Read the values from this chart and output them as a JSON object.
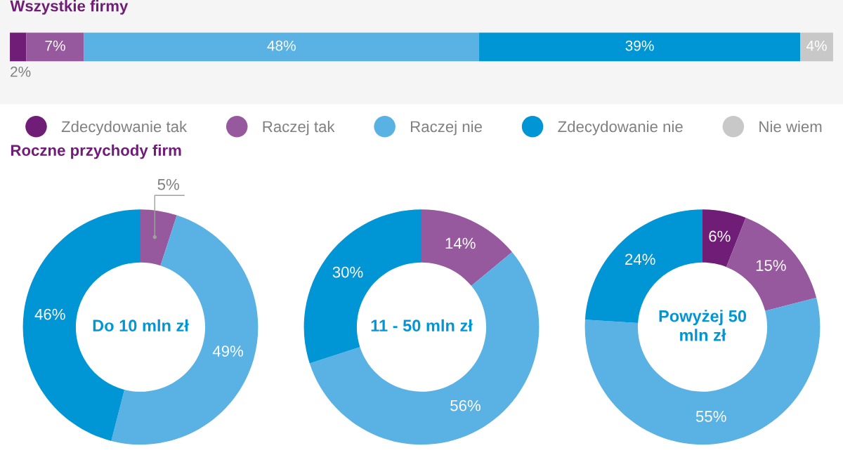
{
  "chart_data": [
    {
      "type": "bar",
      "title": "Wszystkie firmy",
      "categories": [
        null
      ],
      "stacked": true,
      "orientation": "horizontal",
      "legend": "bottom",
      "series": [
        {
          "name": "Zdecydowanie tak",
          "color": "#6f1d77",
          "values": [
            2
          ],
          "value_labels": [
            "2%"
          ]
        },
        {
          "name": "Raczej tak",
          "color": "#97599d",
          "values": [
            7
          ],
          "value_labels": [
            "7%"
          ]
        },
        {
          "name": "Raczej nie",
          "color": "#5ab1e3",
          "values": [
            48
          ],
          "value_labels": [
            "48%"
          ]
        },
        {
          "name": "Zdecydowanie nie",
          "color": "#0096d6",
          "values": [
            39
          ],
          "value_labels": [
            "39%"
          ]
        },
        {
          "name": "Nie wiem",
          "color": "#c8c8c8",
          "values": [
            4
          ],
          "value_labels": [
            "4%"
          ]
        }
      ]
    },
    {
      "type": "donut",
      "subtitle": "Roczne przychody firm",
      "title": "Do 10 mln zł",
      "categories": [
        null,
        null,
        null
      ],
      "values": [
        5,
        49,
        46
      ],
      "value_labels": [
        "5%",
        "49%",
        "46%"
      ],
      "colors": [
        "#97599d",
        "#5ab1e3",
        "#0096d6"
      ]
    },
    {
      "type": "donut",
      "title": "11 - 50 mln zł",
      "categories": [
        null,
        null,
        null
      ],
      "values": [
        14,
        56,
        30
      ],
      "value_labels": [
        "14%",
        "56%",
        "30%"
      ],
      "colors": [
        "#97599d",
        "#5ab1e3",
        "#0096d6"
      ]
    },
    {
      "type": "donut",
      "title": "Powyżej 50\nmln zł",
      "categories": [
        null,
        null,
        null,
        null
      ],
      "values": [
        6,
        15,
        55,
        24
      ],
      "value_labels": [
        "6%",
        "15%",
        "55%",
        "24%"
      ],
      "colors": [
        "#6f1d77",
        "#97599d",
        "#5ab1e3",
        "#0096d6"
      ]
    }
  ]
}
